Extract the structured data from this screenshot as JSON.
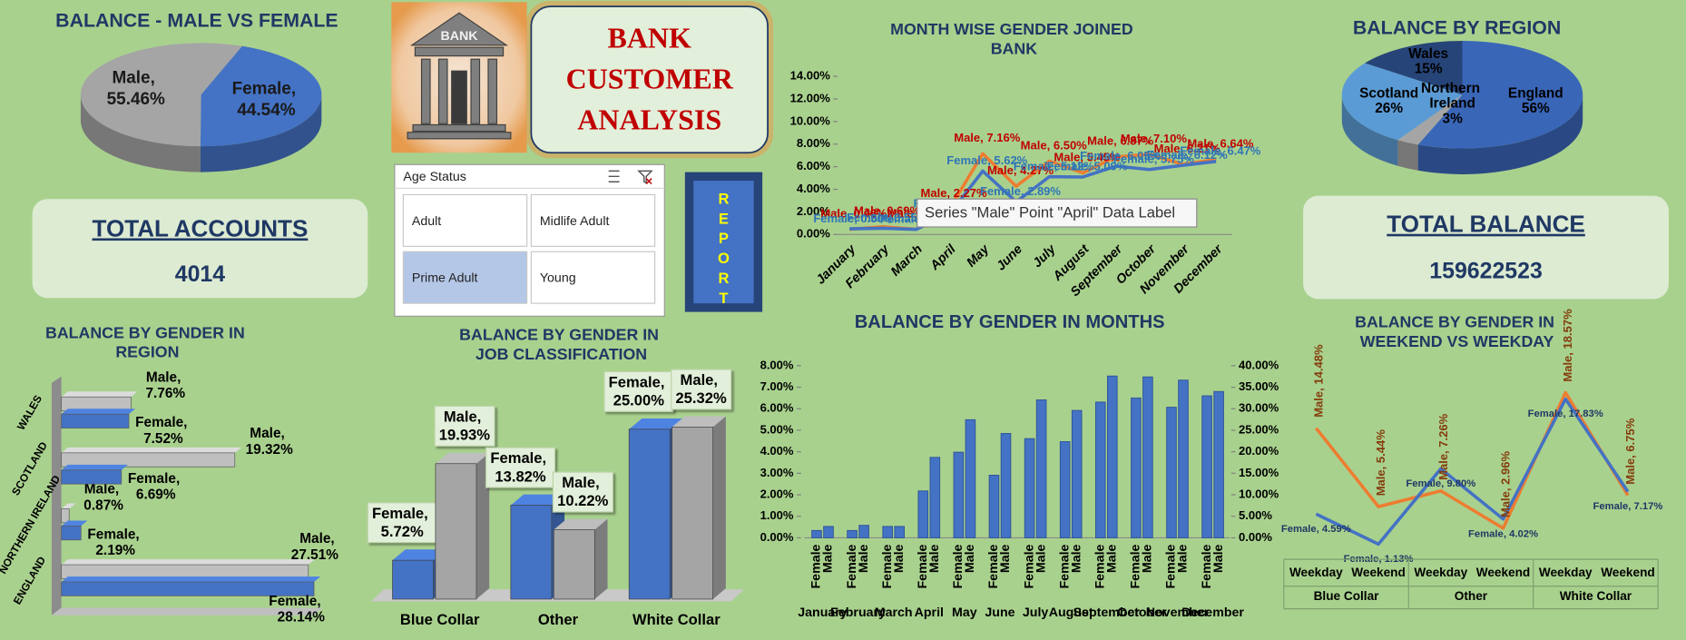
{
  "header": {
    "icon_text": "BANK",
    "title_lines": [
      "BANK",
      "CUSTOMER",
      "ANALYSIS"
    ]
  },
  "kpis": [
    {
      "label": "TOTAL ACCOUNTS",
      "value": 4014
    },
    {
      "label": "TOTAL BALANCE",
      "value": 159622523
    }
  ],
  "slicer": {
    "title": "Age Status",
    "items": [
      "Adult",
      "Midlife Adult",
      "Prime Adult",
      "Young"
    ],
    "selected": "Prime Adult"
  },
  "button": {
    "label": "REPORT"
  },
  "tooltip": "Series \"Male\" Point \"April\" Data Label",
  "chart_data": [
    {
      "type": "pie",
      "title": "BALANCE - MALE VS FEMALE",
      "categories": [
        "Male",
        "Female"
      ],
      "values": [
        55.46,
        44.54
      ],
      "value_labels": [
        "Male, 55.46%",
        "Female, 44.54%"
      ],
      "colors": [
        "#a5a5a5",
        "#4472c4"
      ]
    },
    {
      "type": "pie",
      "title": "BALANCE BY REGION",
      "categories": [
        "England",
        "Northern Ireland",
        "Scotland",
        "Wales"
      ],
      "values": [
        56,
        3,
        26,
        15
      ],
      "value_labels": [
        "56%",
        "3%",
        "26%",
        "15%"
      ],
      "colors": [
        "#3a66b8",
        "#a5a5a5",
        "#5b9bd5",
        "#264478"
      ]
    },
    {
      "type": "line",
      "title": "MONTH WISE GENDER JOINED BANK",
      "categories": [
        "January",
        "February",
        "March",
        "April",
        "May",
        "June",
        "July",
        "August",
        "September",
        "October",
        "November",
        "December"
      ],
      "series": [
        {
          "color": "#ed7d31",
          "values": [
            0.46,
            0.69,
            0.46,
            2.27,
            7.16,
            4.27,
            6.5,
            5.45,
            6.87,
            7.1,
            6.21,
            6.64
          ],
          "value_labels": [
            "Male, 0.46%",
            "Male, 0.69%",
            "Male, 0.46%",
            "Male, 2.27%",
            "Male, 7.16%",
            "Male, 4.27%",
            "Male, 6.50%",
            "Male, 5.45%",
            "Male, 6.87%",
            "Male, 7.10%",
            "Male, 6.21%",
            "Male, 6.64%"
          ]
        },
        {
          "color": "#4472c4",
          "values": [
            0.5,
            0.55,
            0.45,
            1.8,
            5.62,
            2.89,
            5.12,
            5.09,
            6.05,
            5.75,
            6.12,
            6.47
          ],
          "value_labels": [
            "Female, 0.50%",
            "Female, 0.55%",
            "Female, 0.45%",
            "Female, 1.80%",
            "Female, 5.62%",
            "Female, 2.89%",
            "Female, 5.12%",
            "Female, 5.09%",
            "Female, 6.05%",
            "Female, 5.75%",
            "Female, 6.12%",
            "Female, 6.47%"
          ]
        }
      ],
      "ylim": [
        0,
        14
      ],
      "yticks": [
        {
          "value": 0,
          "label": "0.00%"
        },
        {
          "value": 2,
          "label": "2.00%"
        },
        {
          "value": 4,
          "label": "4.00%"
        },
        {
          "value": 6,
          "label": "6.00%"
        },
        {
          "value": 8,
          "label": "8.00%"
        },
        {
          "value": 10,
          "label": "10.00%"
        },
        {
          "value": 12,
          "label": "12.00%"
        },
        {
          "value": 14,
          "label": "14.00%"
        }
      ]
    },
    {
      "type": "hbar",
      "title": "BALANCE BY GENDER IN REGION",
      "categories": [
        "ENGLAND",
        "NORTHERN IRELAND",
        "SCOTLAND",
        "WALES"
      ],
      "series": [
        {
          "color": "#bfbfbf",
          "values": [
            27.51,
            0.87,
            19.32,
            7.76
          ],
          "value_labels": [
            "Male, 27.51%",
            "Male, 0.87%",
            "Male, 19.32%",
            "Male, 7.76%"
          ]
        },
        {
          "color": "#4472c4",
          "values": [
            28.14,
            2.19,
            6.69,
            7.52
          ],
          "value_labels": [
            "Female, 28.14%",
            "Female, 2.19%",
            "Female, 6.69%",
            "Female, 7.52%"
          ]
        }
      ]
    },
    {
      "type": "bar3d",
      "title": "BALANCE BY GENDER IN JOB CLASSIFICATION",
      "categories": [
        "Blue Collar",
        "Other",
        "White Collar"
      ],
      "series": [
        {
          "color": "#4472c4",
          "values": [
            5.72,
            13.82,
            25.0
          ],
          "value_labels": [
            "Female, 5.72%",
            "Female, 13.82%",
            "Female, 25.00%"
          ]
        },
        {
          "color": "#a5a5a5",
          "values": [
            19.93,
            10.22,
            25.32
          ],
          "value_labels": [
            "Male, 19.93%",
            "Male, 10.22%",
            "Male, 25.32%"
          ]
        }
      ]
    },
    {
      "type": "bar",
      "title": "BALANCE BY GENDER IN MONTHS",
      "categories": [
        "January",
        "February",
        "March",
        "April",
        "May",
        "June",
        "July",
        "August",
        "September",
        "October",
        "November",
        "December"
      ],
      "series": [
        {
          "name": "Female",
          "color": "#4472c4",
          "values": [
            0.34,
            0.34,
            0.53,
            2.18,
            3.98,
            2.91,
            4.61,
            4.47,
            6.31,
            6.5,
            6.07,
            6.6
          ]
        },
        {
          "name": "Male",
          "color": "#4472c4",
          "values": [
            0.53,
            0.58,
            0.53,
            3.74,
            5.49,
            4.85,
            6.41,
            5.92,
            7.52,
            7.48,
            7.33,
            6.8
          ]
        }
      ],
      "ylim": [
        0,
        8
      ],
      "yticks": [
        {
          "value": 0,
          "label": "0.00%"
        },
        {
          "value": 1,
          "label": "1.00%"
        },
        {
          "value": 2,
          "label": "2.00%"
        },
        {
          "value": 3,
          "label": "3.00%"
        },
        {
          "value": 4,
          "label": "4.00%"
        },
        {
          "value": 5,
          "label": "5.00%"
        },
        {
          "value": 6,
          "label": "6.00%"
        },
        {
          "value": 7,
          "label": "7.00%"
        },
        {
          "value": 8,
          "label": "8.00%"
        }
      ],
      "y2lim": [
        0,
        40
      ],
      "y2ticks": [
        {
          "value": 0,
          "label": "0.00%"
        },
        {
          "value": 5,
          "label": "5.00%"
        },
        {
          "value": 10,
          "label": "10.00%"
        },
        {
          "value": 15,
          "label": "15.00%"
        },
        {
          "value": 20,
          "label": "20.00%"
        },
        {
          "value": 25,
          "label": "25.00%"
        },
        {
          "value": 30,
          "label": "30.00%"
        },
        {
          "value": 35,
          "label": "35.00%"
        },
        {
          "value": 40,
          "label": "40.00%"
        }
      ]
    },
    {
      "type": "line",
      "title": "BALANCE BY GENDER IN WEEKEND VS WEEKDAY",
      "categories": [
        "Weekday",
        "Weekend",
        "Weekday",
        "Weekend",
        "Weekday",
        "Weekend"
      ],
      "groups": [
        "Blue Collar",
        "Other",
        "White Collar"
      ],
      "series": [
        {
          "color": "#ed7d31",
          "values": [
            14.48,
            5.44,
            7.26,
            2.96,
            18.57,
            6.75
          ],
          "value_labels": [
            "Male, 14.48%",
            "Male, 5.44%",
            "Male, 7.26%",
            "Male, 2.96%",
            "Male, 18.57%",
            "Male, 6.75%"
          ]
        },
        {
          "color": "#4472c4",
          "values": [
            4.59,
            1.13,
            9.8,
            4.02,
            17.83,
            7.17
          ],
          "value_labels": [
            "Female, 4.59%",
            "Female, 1.13%",
            "Female, 9.80%",
            "Female, 4.02%",
            "Female, 17.83%",
            "Female, 7.17%"
          ]
        }
      ]
    }
  ]
}
